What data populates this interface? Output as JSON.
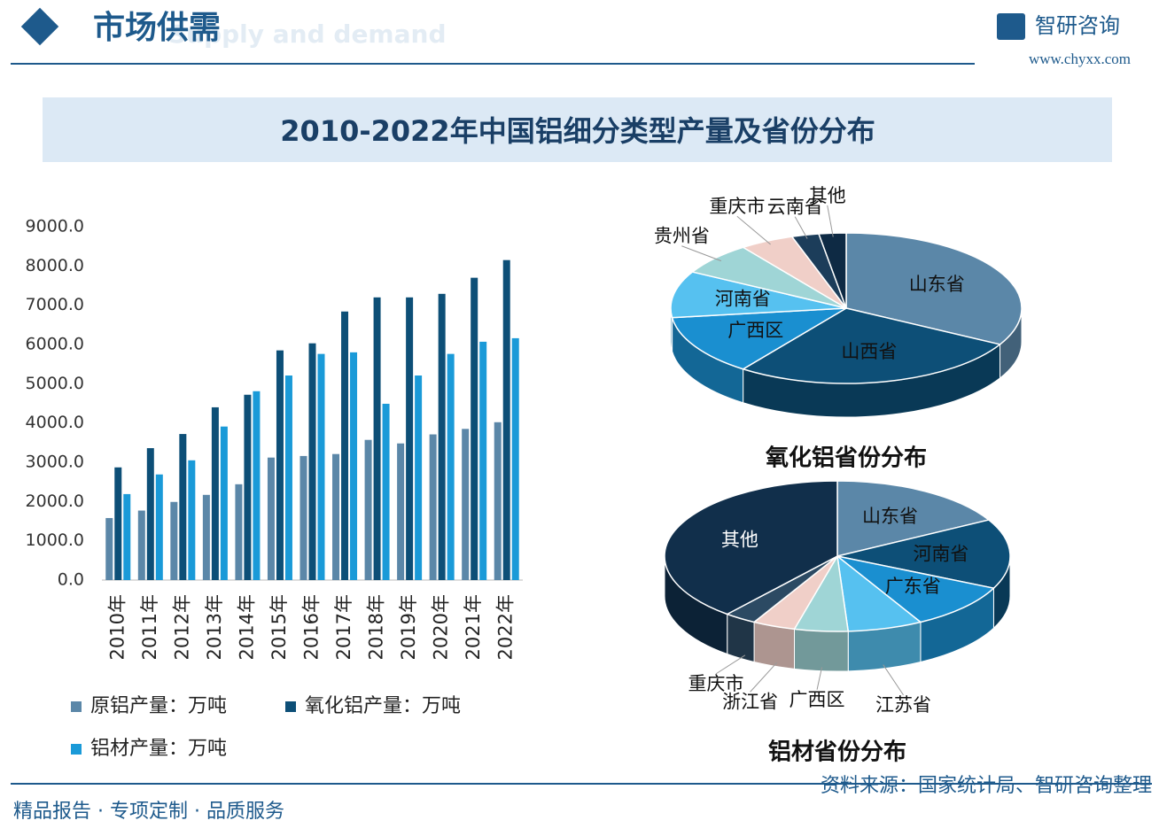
{
  "header": {
    "title": "市场供需",
    "subtitle": "Supply and demand",
    "brand": "智研咨询",
    "url": "www.chyxx.com",
    "main_title": "2010-2022年中国铝细分类型产量及省份分布"
  },
  "footer": {
    "slogan": "精品报告 · 专项定制 · 品质服务",
    "source": "资料来源：国家统计局、智研咨询整理"
  },
  "chart_data": [
    {
      "type": "bar",
      "categories": [
        "2010年",
        "2011年",
        "2012年",
        "2013年",
        "2014年",
        "2015年",
        "2016年",
        "2017年",
        "2018年",
        "2019年",
        "2020年",
        "2021年",
        "2022年"
      ],
      "series": [
        {
          "name": "原铝产量：万吨",
          "color": "#5b87a8",
          "values": [
            1580,
            1770,
            1990,
            2170,
            2440,
            3120,
            3160,
            3210,
            3570,
            3480,
            3710,
            3850,
            4020
          ]
        },
        {
          "name": "氧化铝产量：万吨",
          "color": "#0d4f77",
          "values": [
            2870,
            3360,
            3720,
            4400,
            4720,
            5850,
            6030,
            6840,
            7200,
            7200,
            7290,
            7700,
            8150
          ]
        },
        {
          "name": "铝材产量：万吨",
          "color": "#1a9ad8",
          "values": [
            2190,
            2690,
            3050,
            3910,
            4810,
            5210,
            5760,
            5800,
            4490,
            5210,
            5760,
            6070,
            6160
          ]
        }
      ],
      "ylim": [
        0,
        9000
      ],
      "yticks": [
        {
          "value": 0,
          "label": "0.0"
        },
        {
          "value": 1000,
          "label": "1000.0"
        },
        {
          "value": 2000,
          "label": "2000.0"
        },
        {
          "value": 3000,
          "label": "3000.0"
        },
        {
          "value": 4000,
          "label": "4000.0"
        },
        {
          "value": 5000,
          "label": "5000.0"
        },
        {
          "value": 6000,
          "label": "6000.0"
        },
        {
          "value": 7000,
          "label": "7000.0"
        },
        {
          "value": 8000,
          "label": "8000.0"
        },
        {
          "value": 9000,
          "label": "9000.0"
        }
      ],
      "grid": false
    },
    {
      "type": "pie",
      "title": "氧化铝省份分布",
      "categories": [
        "山东省",
        "山西省",
        "广西区",
        "河南省",
        "贵州省",
        "重庆市",
        "云南省",
        "其他"
      ],
      "values": [
        33,
        27,
        13,
        10,
        7,
        5,
        2.5,
        2.5
      ],
      "colors": [
        "#5b87a8",
        "#0d4f77",
        "#1a8fd0",
        "#56c1f0",
        "#9fd5d6",
        "#f0cfc8",
        "#1c3d5a",
        "#0e2a44"
      ]
    },
    {
      "type": "pie",
      "title": "铝材省份分布",
      "categories": [
        "山东省",
        "河南省",
        "广东省",
        "江苏省",
        "广西区",
        "浙江省",
        "重庆市",
        "其他"
      ],
      "values": [
        17,
        15,
        10,
        7,
        5,
        4,
        3,
        39
      ],
      "colors": [
        "#5b87a8",
        "#0d4f77",
        "#1a8fd0",
        "#56c1f0",
        "#9fd5d6",
        "#f0cfc8",
        "#2c4a63",
        "#112f4b"
      ]
    }
  ]
}
